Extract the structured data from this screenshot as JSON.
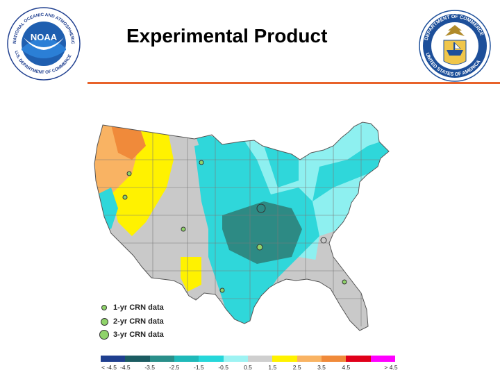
{
  "header": {
    "title": "Experimental Product",
    "left_logo": {
      "name": "noaa-logo",
      "center_text": "NOAA",
      "ring_top_text": "NATIONAL OCEANIC AND ATMOSPHERIC ADMINISTRATION",
      "ring_bottom_text": "U.S. DEPARTMENT OF COMMERCE",
      "colors": {
        "ring": "#ffffff",
        "sky": "#1f5fb0",
        "bird": "#ffffff",
        "wave": "#2b7fd6"
      }
    },
    "right_logo": {
      "name": "department-of-commerce-seal",
      "ring_top_text": "DEPARTMENT OF COMMERCE",
      "ring_bottom_text": "UNITED STATES OF AMERICA",
      "colors": {
        "ring": "#1d4f9a",
        "field": "#f0c64a",
        "eagle": "#b08a2a"
      }
    },
    "rule_color": "#e8622a"
  },
  "map": {
    "region": "contiguous-united-states",
    "colors": {
      "gray": "#c9c9c9",
      "light_cyan": "#8ef0f0",
      "cyan": "#2fd7da",
      "teal": "#1fb3b3",
      "dark_teal": "#2d8a84",
      "yellow": "#fff200",
      "light_orange": "#f9b363",
      "orange": "#f08a3a",
      "station": "#8fd36a"
    }
  },
  "point_legend": {
    "items": [
      {
        "label": "1-yr CRN data",
        "size": "small"
      },
      {
        "label": "2-yr CRN data",
        "size": "medium"
      },
      {
        "label": "3-yr CRN data",
        "size": "large"
      }
    ]
  },
  "color_scale": {
    "labels": [
      "< -4.5",
      "-4.5",
      "-3.5",
      "-2.5",
      "-1.5",
      "-0.5",
      "0.5",
      "1.5",
      "2.5",
      "3.5",
      "4.5",
      "> 4.5"
    ],
    "colors": [
      "#1f3f8f",
      "#1b5c62",
      "#2a8f8a",
      "#1fb9b9",
      "#26d7da",
      "#9ef3f3",
      "#cfcfcf",
      "#fff200",
      "#f9b363",
      "#f08a3a",
      "#e0001a",
      "#ff00ff"
    ]
  }
}
